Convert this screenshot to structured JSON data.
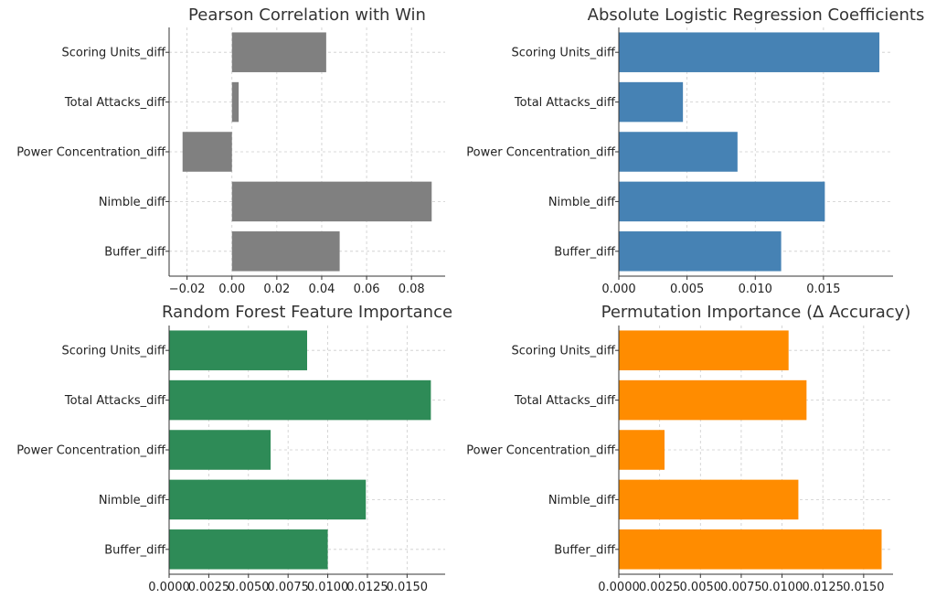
{
  "chart_data": [
    {
      "type": "bar",
      "orientation": "horizontal",
      "title": "Pearson Correlation with Win",
      "categories": [
        "Scoring Units_diff",
        "Total Attacks_diff",
        "Power Concentration_diff",
        "Nimble_diff",
        "Buffer_diff"
      ],
      "values": [
        0.042,
        0.003,
        -0.022,
        0.089,
        0.048
      ],
      "xlim": [
        -0.028,
        0.095
      ],
      "xticks": [
        -0.02,
        0.0,
        0.02,
        0.04,
        0.06,
        0.08
      ],
      "xtick_labels": [
        "−0.02",
        "0.00",
        "0.02",
        "0.04",
        "0.06",
        "0.08"
      ],
      "color": "#808080",
      "grid": true
    },
    {
      "type": "bar",
      "orientation": "horizontal",
      "title": "Absolute Logistic Regression Coefficients",
      "categories": [
        "Scoring Units_diff",
        "Total Attacks_diff",
        "Power Concentration_diff",
        "Nimble_diff",
        "Buffer_diff"
      ],
      "values": [
        0.0191,
        0.0047,
        0.0087,
        0.0151,
        0.0119
      ],
      "xlim": [
        0,
        0.0201
      ],
      "xticks": [
        0.0,
        0.005,
        0.01,
        0.015
      ],
      "xtick_labels": [
        "0.000",
        "0.005",
        "0.010",
        "0.015"
      ],
      "color": "#4682B4",
      "grid": true
    },
    {
      "type": "bar",
      "orientation": "horizontal",
      "title": "Random Forest Feature Importance",
      "categories": [
        "Scoring Units_diff",
        "Total Attacks_diff",
        "Power Concentration_diff",
        "Nimble_diff",
        "Buffer_diff"
      ],
      "values": [
        0.0087,
        0.0165,
        0.0064,
        0.0124,
        0.01
      ],
      "xlim": [
        0,
        0.0174
      ],
      "xticks": [
        0.0,
        0.0025,
        0.005,
        0.0075,
        0.01,
        0.0125,
        0.015
      ],
      "xtick_labels": [
        "0.0000",
        "0.0025",
        "0.0050",
        "0.0075",
        "0.0100",
        "0.0125",
        "0.0150"
      ],
      "color": "#2E8B57",
      "grid": true
    },
    {
      "type": "bar",
      "orientation": "horizontal",
      "title": "Permutation Importance (Δ Accuracy)",
      "categories": [
        "Scoring Units_diff",
        "Total Attacks_diff",
        "Power Concentration_diff",
        "Nimble_diff",
        "Buffer_diff"
      ],
      "values": [
        0.0104,
        0.0115,
        0.0028,
        0.011,
        0.0161
      ],
      "xlim": [
        0,
        0.0168
      ],
      "xticks": [
        0.0,
        0.0025,
        0.005,
        0.0075,
        0.01,
        0.0125,
        0.015
      ],
      "xtick_labels": [
        "0.0000",
        "0.0025",
        "0.0050",
        "0.0075",
        "0.0100",
        "0.0125",
        "0.0150"
      ],
      "color": "#FF8C00",
      "grid": true
    }
  ]
}
